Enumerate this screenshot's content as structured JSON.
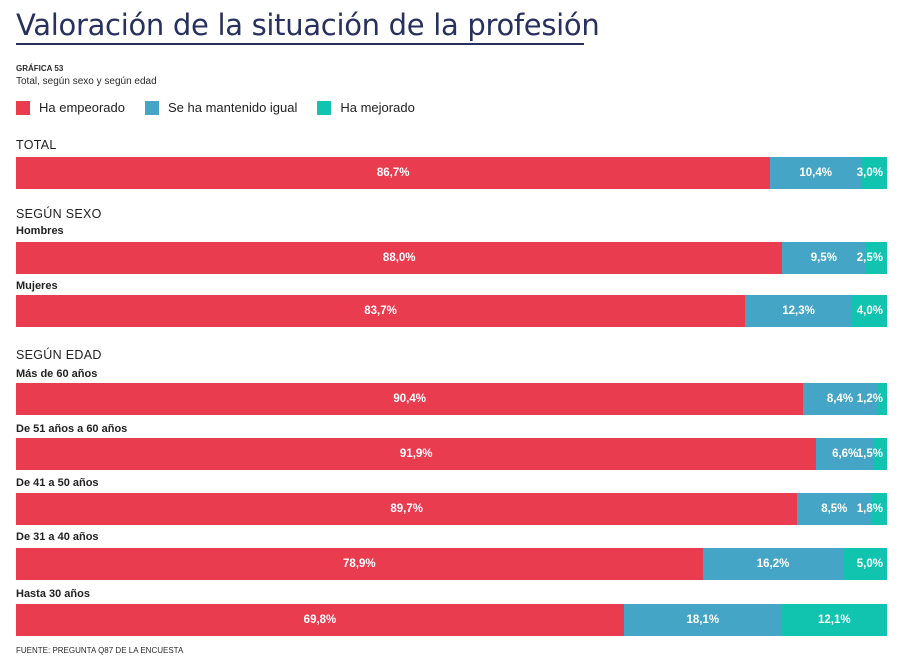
{
  "title": "Valoración de la situación de la profesión",
  "chart_code": "GRÁFICA 53",
  "subtitle": "Total, según sexo y según edad",
  "source": "FUENTE: PREGUNTA Q87 DE LA ENCUESTA",
  "colors": {
    "empeorado": "#e93d4f",
    "igual": "#45a5c6",
    "mejorado": "#10c4b0"
  },
  "legend": [
    {
      "label": "Ha empeorado",
      "color": "#e93d4f"
    },
    {
      "label": "Se ha mantenido igual",
      "color": "#45a5c6"
    },
    {
      "label": "Ha mejorado",
      "color": "#10c4b0"
    }
  ],
  "chart_data": {
    "type": "bar",
    "orientation": "horizontal",
    "stacked": true,
    "normalized": true,
    "unit": "%",
    "series_names": [
      "Ha empeorado",
      "Se ha mantenido igual",
      "Ha mejorado"
    ],
    "legend_position": "top-left",
    "grid": false,
    "groups": [
      {
        "label": "TOTAL",
        "rows": [
          {
            "label": "",
            "values": [
              86.7,
              10.4,
              3.0
            ],
            "labels": [
              "86,7%",
              "10,4%",
              "3,0%"
            ]
          }
        ]
      },
      {
        "label": "SEGÚN SEXO",
        "rows": [
          {
            "label": "Hombres",
            "values": [
              88.0,
              9.5,
              2.5
            ],
            "labels": [
              "88,0%",
              "9,5%",
              "2,5%"
            ]
          },
          {
            "label": "Mujeres",
            "values": [
              83.7,
              12.3,
              4.0
            ],
            "labels": [
              "83,7%",
              "12,3%",
              "4,0%"
            ]
          }
        ]
      },
      {
        "label": "SEGÚN EDAD",
        "rows": [
          {
            "label": "Más de 60 años",
            "values": [
              90.4,
              8.4,
              1.2
            ],
            "labels": [
              "90,4%",
              "8,4%",
              "1,2%"
            ]
          },
          {
            "label": "De 51 años a 60 años",
            "values": [
              91.9,
              6.6,
              1.5
            ],
            "labels": [
              "91,9%",
              "6,6%",
              "1,5%"
            ]
          },
          {
            "label": "De 41 a 50 años",
            "values": [
              89.7,
              8.5,
              1.8
            ],
            "labels": [
              "89,7%",
              "8,5%",
              "1,8%"
            ]
          },
          {
            "label": "De 31 a 40 años",
            "values": [
              78.9,
              16.2,
              5.0
            ],
            "labels": [
              "78,9%",
              "16,2%",
              "5,0%"
            ]
          },
          {
            "label": "Hasta 30 años",
            "values": [
              69.8,
              18.1,
              12.1
            ],
            "labels": [
              "69,8%",
              "18,1%",
              "12,1%"
            ]
          }
        ]
      }
    ]
  }
}
